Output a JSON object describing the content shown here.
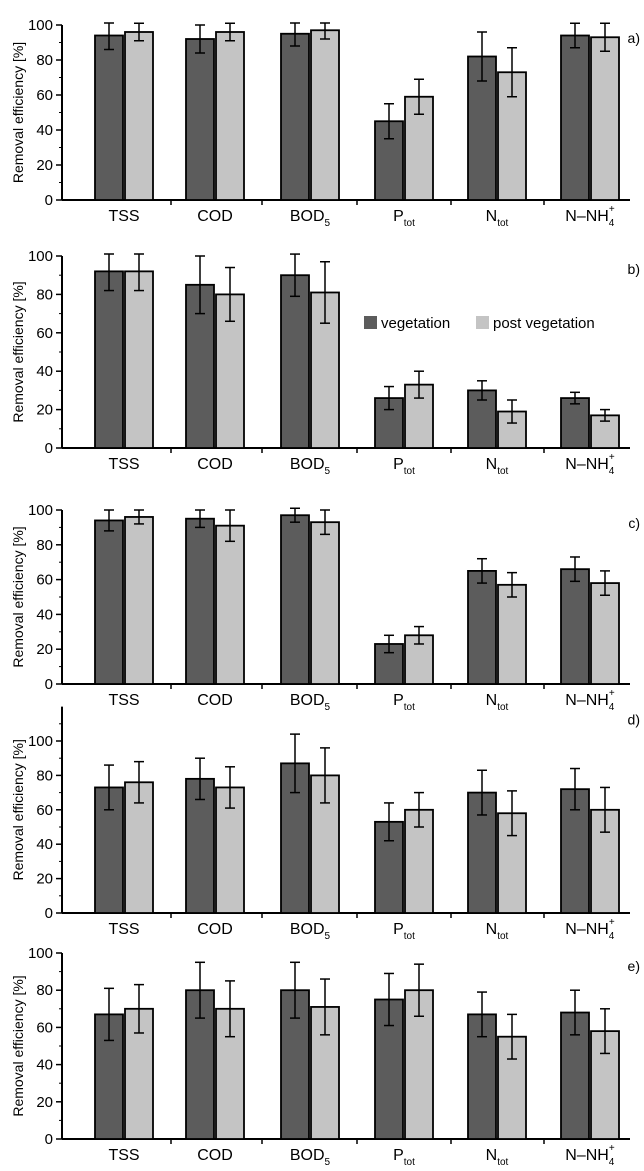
{
  "colors": {
    "vegetation": "#5c5c5c",
    "post_vegetation": "#c4c4c4",
    "axis": "#000000"
  },
  "chart_data": [
    {
      "type": "bar",
      "panel": "a)",
      "ylabel": "Removal efficiency [%]",
      "ylim": [
        0,
        100
      ],
      "yticks": [
        0,
        20,
        40,
        60,
        80,
        100
      ],
      "categories": [
        {
          "main": "TSS",
          "sub": "",
          "sup": ""
        },
        {
          "main": "COD",
          "sub": "",
          "sup": ""
        },
        {
          "main": "BOD",
          "sub": "5",
          "sup": ""
        },
        {
          "main": "P",
          "sub": "tot",
          "sup": ""
        },
        {
          "main": "N",
          "sub": "tot",
          "sup": ""
        },
        {
          "main": "N–NH",
          "sub": "4",
          "sup": "+"
        }
      ],
      "series": [
        {
          "key": "vegetation",
          "values": [
            94,
            92,
            95,
            45,
            82,
            94
          ],
          "errors": [
            8,
            8,
            7,
            10,
            14,
            7
          ]
        },
        {
          "key": "post_vegetation",
          "values": [
            96,
            96,
            97,
            59,
            73,
            93
          ],
          "errors": [
            5,
            5,
            5,
            10,
            14,
            8
          ]
        }
      ]
    },
    {
      "type": "bar",
      "panel": "b)",
      "ylabel": "Removal efficiency [%]",
      "ylim": [
        0,
        100
      ],
      "yticks": [
        0,
        20,
        40,
        60,
        80,
        100
      ],
      "legend": {
        "position": "center-right",
        "entries": [
          "vegetation",
          "post vegetation"
        ]
      },
      "categories": [
        {
          "main": "TSS",
          "sub": "",
          "sup": ""
        },
        {
          "main": "COD",
          "sub": "",
          "sup": ""
        },
        {
          "main": "BOD",
          "sub": "5",
          "sup": ""
        },
        {
          "main": "P",
          "sub": "tot",
          "sup": ""
        },
        {
          "main": "N",
          "sub": "tot",
          "sup": ""
        },
        {
          "main": "N–NH",
          "sub": "4",
          "sup": "+"
        }
      ],
      "series": [
        {
          "key": "vegetation",
          "values": [
            92,
            85,
            90,
            26,
            30,
            26
          ],
          "errors": [
            10,
            15,
            11,
            6,
            5,
            3
          ]
        },
        {
          "key": "post_vegetation",
          "values": [
            92,
            80,
            81,
            33,
            19,
            17
          ],
          "errors": [
            10,
            14,
            16,
            7,
            6,
            3
          ]
        }
      ]
    },
    {
      "type": "bar",
      "panel": "c)",
      "ylabel": "Removal efficiency [%]",
      "ylim": [
        0,
        100
      ],
      "yticks": [
        0,
        20,
        40,
        60,
        80,
        100
      ],
      "categories": [
        {
          "main": "TSS",
          "sub": "",
          "sup": ""
        },
        {
          "main": "COD",
          "sub": "",
          "sup": ""
        },
        {
          "main": "BOD",
          "sub": "5",
          "sup": ""
        },
        {
          "main": "P",
          "sub": "tot",
          "sup": ""
        },
        {
          "main": "N",
          "sub": "tot",
          "sup": ""
        },
        {
          "main": "N–NH",
          "sub": "4",
          "sup": "+"
        }
      ],
      "series": [
        {
          "key": "vegetation",
          "values": [
            94,
            95,
            97,
            23,
            65,
            66
          ],
          "errors": [
            6,
            5,
            4,
            5,
            7,
            7
          ]
        },
        {
          "key": "post_vegetation",
          "values": [
            96,
            91,
            93,
            28,
            57,
            58
          ],
          "errors": [
            4,
            9,
            7,
            5,
            7,
            7
          ]
        }
      ]
    },
    {
      "type": "bar",
      "panel": "d)",
      "ylabel": "Removal efficiency [%]",
      "ylim": [
        0,
        120
      ],
      "yticks": [
        0,
        20,
        40,
        60,
        80,
        100
      ],
      "categories": [
        {
          "main": "TSS",
          "sub": "",
          "sup": ""
        },
        {
          "main": "COD",
          "sub": "",
          "sup": ""
        },
        {
          "main": "BOD",
          "sub": "5",
          "sup": ""
        },
        {
          "main": "P",
          "sub": "tot",
          "sup": ""
        },
        {
          "main": "N",
          "sub": "tot",
          "sup": ""
        },
        {
          "main": "N–NH",
          "sub": "4",
          "sup": "+"
        }
      ],
      "series": [
        {
          "key": "vegetation",
          "values": [
            73,
            78,
            87,
            53,
            70,
            72
          ],
          "errors": [
            13,
            12,
            17,
            11,
            13,
            12
          ]
        },
        {
          "key": "post_vegetation",
          "values": [
            76,
            73,
            80,
            60,
            58,
            60
          ],
          "errors": [
            12,
            12,
            16,
            10,
            13,
            13
          ]
        }
      ]
    },
    {
      "type": "bar",
      "panel": "e)",
      "ylabel": "Removal efficiency [%]",
      "ylim": [
        0,
        100
      ],
      "yticks": [
        0,
        20,
        40,
        60,
        80,
        100
      ],
      "categories": [
        {
          "main": "TSS",
          "sub": "",
          "sup": ""
        },
        {
          "main": "COD",
          "sub": "",
          "sup": ""
        },
        {
          "main": "BOD",
          "sub": "5",
          "sup": ""
        },
        {
          "main": "P",
          "sub": "tot",
          "sup": ""
        },
        {
          "main": "N",
          "sub": "tot",
          "sup": ""
        },
        {
          "main": "N–NH",
          "sub": "4",
          "sup": "+"
        }
      ],
      "series": [
        {
          "key": "vegetation",
          "values": [
            67,
            80,
            80,
            75,
            67,
            68
          ],
          "errors": [
            14,
            15,
            15,
            14,
            12,
            12
          ]
        },
        {
          "key": "post_vegetation",
          "values": [
            70,
            70,
            71,
            80,
            55,
            58
          ],
          "errors": [
            13,
            15,
            15,
            14,
            12,
            12
          ]
        }
      ]
    }
  ]
}
